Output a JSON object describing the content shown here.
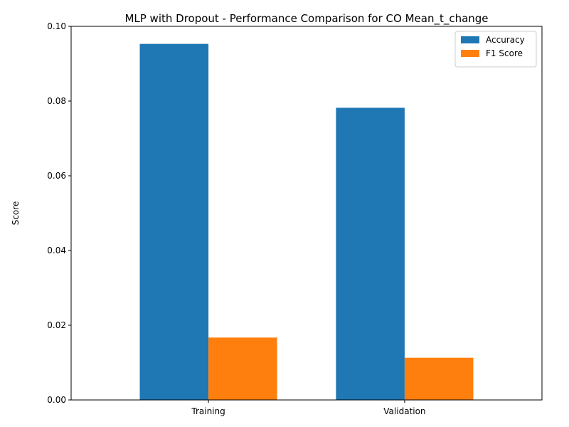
{
  "chart_data": {
    "type": "bar",
    "title": "MLP with Dropout - Performance Comparison for CO Mean_t_change",
    "xlabel": "",
    "ylabel": "Score",
    "categories": [
      "Training",
      "Validation"
    ],
    "series": [
      {
        "name": "Accuracy",
        "values": [
          0.0953,
          0.0782
        ],
        "color": "#1f77b4"
      },
      {
        "name": "F1 Score",
        "values": [
          0.0167,
          0.0113
        ],
        "color": "#ff7f0e"
      }
    ],
    "ylim": [
      0,
      0.1
    ],
    "yticks": [
      0.0,
      0.02,
      0.04,
      0.06,
      0.08,
      0.1
    ],
    "ytick_labels": [
      "0.00",
      "0.02",
      "0.04",
      "0.06",
      "0.08",
      "0.10"
    ],
    "grid": false,
    "legend": "top-right"
  }
}
